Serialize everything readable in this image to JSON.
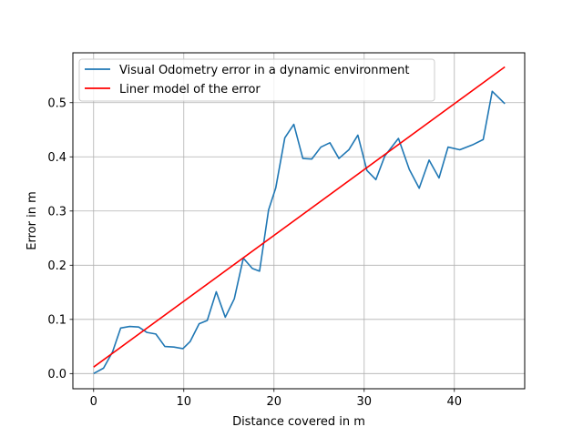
{
  "chart_data": {
    "type": "line",
    "title": "",
    "xlabel": "Distance covered in m",
    "ylabel": "Error in m",
    "xlim": [
      -2.3,
      47.8
    ],
    "ylim": [
      -0.028,
      0.592
    ],
    "xticks": [
      0,
      10,
      20,
      30,
      40
    ],
    "yticks": [
      0.0,
      0.1,
      0.2,
      0.3,
      0.4,
      0.5
    ],
    "xtick_labels": [
      "0",
      "10",
      "20",
      "30",
      "40"
    ],
    "ytick_labels": [
      "0.0",
      "0.1",
      "0.2",
      "0.3",
      "0.4",
      "0.5"
    ],
    "grid": true,
    "legend_position": "top-left",
    "series": [
      {
        "name": "Visual Odometry error in a dynamic environment",
        "color": "#1f77b4",
        "x": [
          0,
          1.1,
          2.1,
          3.0,
          4.0,
          5.0,
          5.9,
          6.9,
          7.9,
          8.9,
          9.9,
          10.7,
          11.7,
          12.6,
          13.6,
          14.6,
          15.6,
          16.6,
          17.6,
          18.4,
          19.4,
          20.2,
          21.2,
          22.2,
          23.2,
          24.2,
          25.2,
          26.2,
          27.2,
          28.3,
          29.3,
          30.3,
          31.3,
          32.3,
          33.8,
          35.0,
          36.1,
          37.2,
          38.3,
          39.3,
          40.6,
          42.0,
          43.2,
          44.2,
          45.6
        ],
        "y": [
          0.0,
          0.01,
          0.04,
          0.084,
          0.087,
          0.086,
          0.076,
          0.073,
          0.05,
          0.049,
          0.046,
          0.059,
          0.092,
          0.098,
          0.151,
          0.104,
          0.138,
          0.213,
          0.194,
          0.189,
          0.302,
          0.343,
          0.435,
          0.46,
          0.397,
          0.396,
          0.418,
          0.426,
          0.397,
          0.413,
          0.44,
          0.375,
          0.358,
          0.402,
          0.434,
          0.377,
          0.342,
          0.394,
          0.361,
          0.418,
          0.413,
          0.422,
          0.432,
          0.521,
          0.498
        ]
      },
      {
        "name": "Liner model of the error",
        "color": "#ff0000",
        "x": [
          0,
          45.6
        ],
        "y": [
          0.012,
          0.566
        ]
      }
    ]
  }
}
